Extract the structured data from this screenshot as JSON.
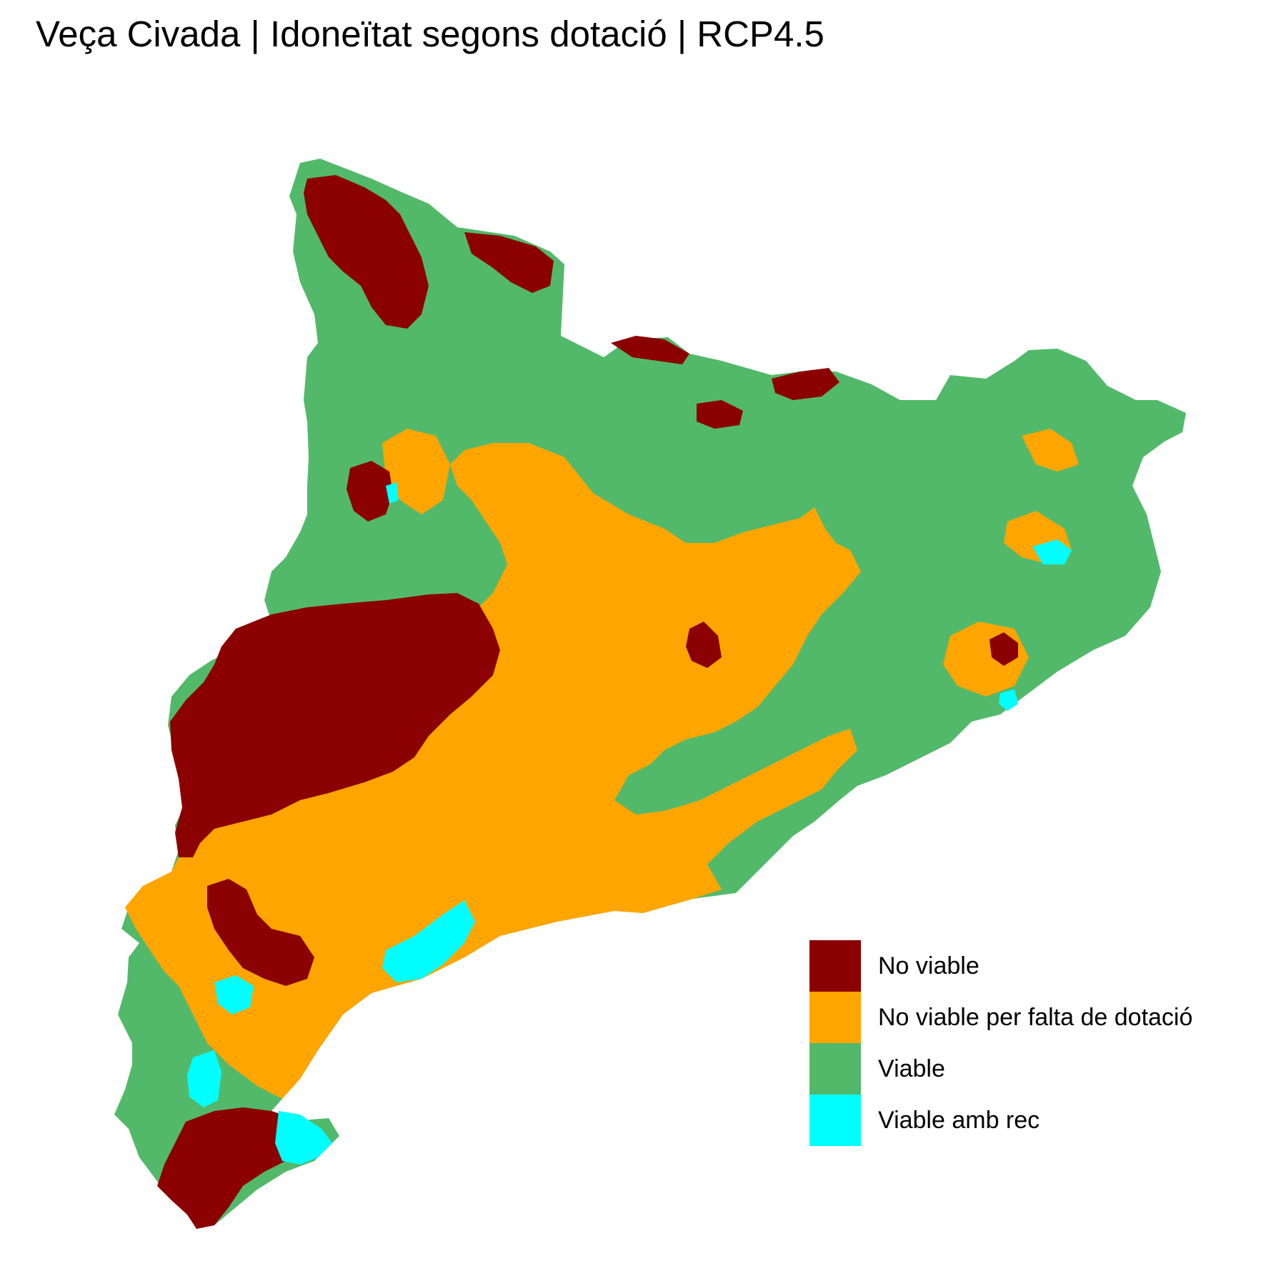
{
  "title": "Veça Civada | Idoneïtat segons dotació | RCP4.5",
  "legend": {
    "items": [
      {
        "label": "No viable",
        "color": "#8B0000"
      },
      {
        "label": "No viable per falta de dotació",
        "color": "#FFA500"
      },
      {
        "label": "Viable",
        "color": "#53B96A"
      },
      {
        "label": "Viable amb rec",
        "color": "#00FFFF"
      }
    ]
  }
}
